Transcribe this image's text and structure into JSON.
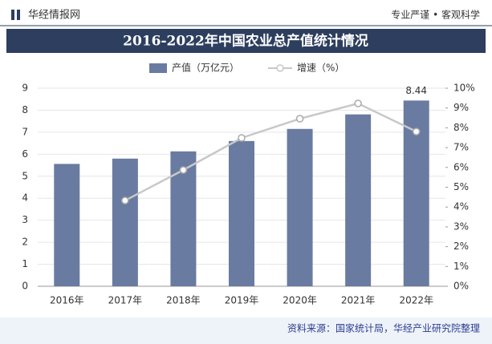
{
  "header": {
    "brand": "华经情报网",
    "slogan": "专业严谨 • 客观科学"
  },
  "chart_data": {
    "type": "bar-line",
    "title": "2016-2022年中国农业总产值统计情况",
    "categories": [
      "2016年",
      "2017年",
      "2018年",
      "2019年",
      "2020年",
      "2021年",
      "2022年"
    ],
    "series": [
      {
        "name": "产值（万亿元）",
        "type": "bar",
        "color": "#6a7ba1",
        "values": [
          5.56,
          5.8,
          6.13,
          6.6,
          7.15,
          7.81,
          8.44
        ]
      },
      {
        "name": "增速（%）",
        "type": "line",
        "axis": "y2",
        "color": "#c8c8c8",
        "values": [
          null,
          4.33,
          5.87,
          7.49,
          8.46,
          9.23,
          7.81
        ]
      }
    ],
    "ylim": [
      0,
      9
    ],
    "yticks": [
      0,
      1,
      2,
      3,
      4,
      5,
      6,
      7,
      8,
      9
    ],
    "y2lim": [
      0,
      10
    ],
    "y2ticks": [
      {
        "value": 0,
        "label": "0%"
      },
      {
        "value": 1,
        "label": "1%"
      },
      {
        "value": 2,
        "label": "2%"
      },
      {
        "value": 3,
        "label": "3%"
      },
      {
        "value": 4,
        "label": "4%"
      },
      {
        "value": 5,
        "label": "5%"
      },
      {
        "value": 6,
        "label": "6%"
      },
      {
        "value": 7,
        "label": "7%"
      },
      {
        "value": 8,
        "label": "8%"
      },
      {
        "value": 9,
        "label": "9%"
      },
      {
        "value": 10,
        "label": "10%"
      }
    ],
    "grid": true,
    "legend": "top",
    "source": "资料来源：国家统计局，华经产业研究院整理"
  }
}
